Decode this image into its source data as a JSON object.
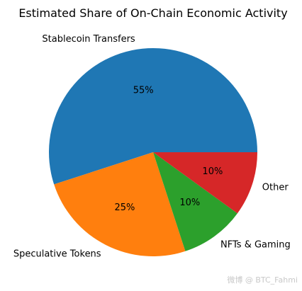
{
  "chart_data": {
    "type": "pie",
    "title": "Estimated Share of On-Chain Economic Activity",
    "categories": [
      "Stablecoin Transfers",
      "Speculative Tokens",
      "NFTs & Gaming",
      "Other"
    ],
    "values": [
      55,
      25,
      10,
      10
    ],
    "value_labels": [
      "55%",
      "25%",
      "10%",
      "10%"
    ],
    "colors": [
      "#1f77b4",
      "#ff7f0e",
      "#2ca02c",
      "#d62728"
    ],
    "start_angle_deg": 0,
    "direction": "counterclockwise"
  },
  "watermark": "微博 @ BTC_Fahmi"
}
